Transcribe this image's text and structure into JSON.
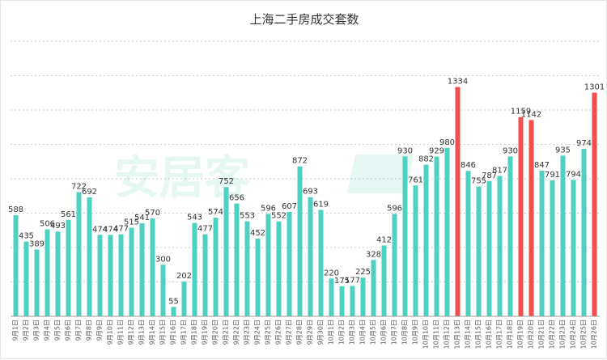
{
  "chart_data": {
    "type": "bar",
    "title": "上海二手房成交套数",
    "xlabel": "",
    "ylabel": "",
    "ylim": [
      0,
      1600
    ],
    "grid": true,
    "legend": "none",
    "colors": {
      "normal": "#4fd1c1",
      "highlight": "#f24e4e"
    },
    "categories": [
      "9月1日",
      "9月2日",
      "9月3日",
      "9月4日",
      "9月5日",
      "9月6日",
      "9月7日",
      "9月8日",
      "9月9日",
      "9月10日",
      "9月11日",
      "9月12日",
      "9月13日",
      "9月14日",
      "9月15日",
      "9月16日",
      "9月17日",
      "9月18日",
      "9月19日",
      "9月20日",
      "9月21日",
      "9月22日",
      "9月23日",
      "9月24日",
      "9月25日",
      "9月26日",
      "9月27日",
      "9月28日",
      "9月29日",
      "9月30日",
      "10月1日",
      "10月2日",
      "10月3日",
      "10月4日",
      "10月5日",
      "10月6日",
      "10月7日",
      "10月8日",
      "10月9日",
      "10月10日",
      "10月11日",
      "10月12日",
      "10月13日",
      "10月14日",
      "10月15日",
      "10月16日",
      "10月17日",
      "10月18日",
      "10月19日",
      "10月20日",
      "10月21日",
      "10月22日",
      "10月23日",
      "10月24日",
      "10月25日",
      "10月26日"
    ],
    "values": [
      588,
      435,
      389,
      506,
      493,
      561,
      722,
      692,
      474,
      474,
      477,
      515,
      541,
      570,
      300,
      55,
      202,
      543,
      477,
      574,
      752,
      656,
      553,
      452,
      596,
      552,
      607,
      872,
      693,
      619,
      220,
      175,
      177,
      225,
      328,
      412,
      596,
      930,
      761,
      882,
      929,
      980,
      1334,
      846,
      755,
      787,
      817,
      930,
      1159,
      1142,
      847,
      791,
      935,
      794,
      974,
      1301
    ],
    "highlight_categories": [
      "10月13日",
      "10月19日",
      "10月20日",
      "10月26日"
    ]
  },
  "watermark": {
    "text": "安居客"
  }
}
